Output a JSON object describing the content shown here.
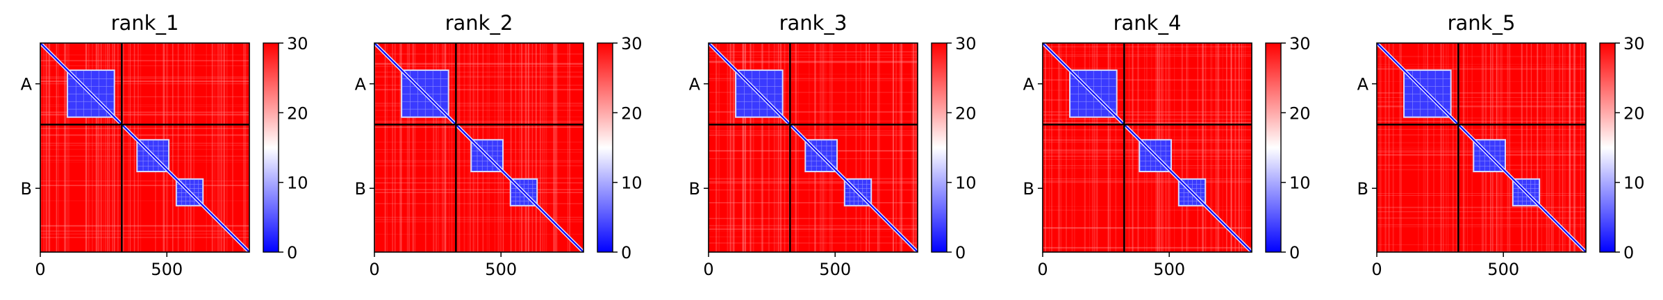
{
  "figure": {
    "panel_count": 5
  },
  "colormap": {
    "name": "bwr",
    "low_color": "#0000ff",
    "mid_color": "#ffffff",
    "high_color": "#ff0000"
  },
  "chart_data": [
    {
      "type": "heatmap",
      "title": "rank_1",
      "xlabel": "",
      "ylabel": "",
      "x_ticks": [
        0,
        500
      ],
      "x_range": [
        0,
        826
      ],
      "y_ticks": [
        "A",
        "B"
      ],
      "chain_boundary": 322,
      "colorbar": {
        "range": [
          0,
          30
        ],
        "ticks": [
          0,
          10,
          20,
          30
        ]
      },
      "low_value_blocks": [
        {
          "x": [
            110,
            290
          ],
          "y": [
            110,
            290
          ]
        },
        {
          "x": [
            385,
            505
          ],
          "y": [
            385,
            505
          ]
        },
        {
          "x": [
            540,
            640
          ],
          "y": [
            540,
            640
          ]
        }
      ]
    },
    {
      "type": "heatmap",
      "title": "rank_2",
      "xlabel": "",
      "ylabel": "",
      "x_ticks": [
        0,
        500
      ],
      "x_range": [
        0,
        826
      ],
      "y_ticks": [
        "A",
        "B"
      ],
      "chain_boundary": 322,
      "colorbar": {
        "range": [
          0,
          30
        ],
        "ticks": [
          0,
          10,
          20,
          30
        ]
      },
      "low_value_blocks": [
        {
          "x": [
            110,
            290
          ],
          "y": [
            110,
            290
          ]
        },
        {
          "x": [
            385,
            505
          ],
          "y": [
            385,
            505
          ]
        },
        {
          "x": [
            540,
            640
          ],
          "y": [
            540,
            640
          ]
        }
      ]
    },
    {
      "type": "heatmap",
      "title": "rank_3",
      "xlabel": "",
      "ylabel": "",
      "x_ticks": [
        0,
        500
      ],
      "x_range": [
        0,
        826
      ],
      "y_ticks": [
        "A",
        "B"
      ],
      "chain_boundary": 322,
      "colorbar": {
        "range": [
          0,
          30
        ],
        "ticks": [
          0,
          10,
          20,
          30
        ]
      },
      "low_value_blocks": [
        {
          "x": [
            110,
            290
          ],
          "y": [
            110,
            290
          ]
        },
        {
          "x": [
            385,
            505
          ],
          "y": [
            385,
            505
          ]
        },
        {
          "x": [
            540,
            640
          ],
          "y": [
            540,
            640
          ]
        }
      ]
    },
    {
      "type": "heatmap",
      "title": "rank_4",
      "xlabel": "",
      "ylabel": "",
      "x_ticks": [
        0,
        500
      ],
      "x_range": [
        0,
        826
      ],
      "y_ticks": [
        "A",
        "B"
      ],
      "chain_boundary": 322,
      "colorbar": {
        "range": [
          0,
          30
        ],
        "ticks": [
          0,
          10,
          20,
          30
        ]
      },
      "low_value_blocks": [
        {
          "x": [
            110,
            290
          ],
          "y": [
            110,
            290
          ]
        },
        {
          "x": [
            385,
            505
          ],
          "y": [
            385,
            505
          ]
        },
        {
          "x": [
            540,
            640
          ],
          "y": [
            540,
            640
          ]
        }
      ]
    },
    {
      "type": "heatmap",
      "title": "rank_5",
      "xlabel": "",
      "ylabel": "",
      "x_ticks": [
        0,
        500
      ],
      "x_range": [
        0,
        826
      ],
      "y_ticks": [
        "A",
        "B"
      ],
      "chain_boundary": 322,
      "colorbar": {
        "range": [
          0,
          30
        ],
        "ticks": [
          0,
          10,
          20,
          30
        ]
      },
      "low_value_blocks": [
        {
          "x": [
            110,
            290
          ],
          "y": [
            110,
            290
          ]
        },
        {
          "x": [
            385,
            505
          ],
          "y": [
            385,
            505
          ]
        },
        {
          "x": [
            540,
            640
          ],
          "y": [
            540,
            640
          ]
        }
      ]
    }
  ]
}
